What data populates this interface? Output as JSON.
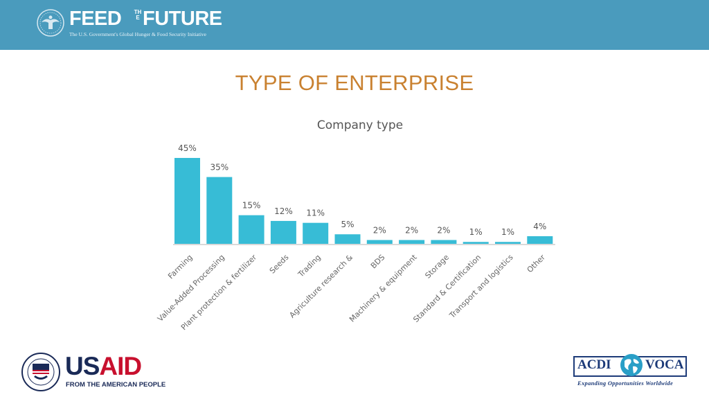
{
  "header": {
    "logo": {
      "feed": "FEED",
      "the": "THE",
      "future": "FUTURE",
      "tagline": "The U.S. Government's Global Hunger & Food Security Initiative"
    }
  },
  "slide_title": "TYPE OF ENTERPRISE",
  "chart_data": {
    "type": "bar",
    "title": "Company type",
    "categories": [
      "Farming",
      "Value-Added Processing",
      "Plant protection & fertilizer",
      "Seeds",
      "Trading",
      "Agriculture research &",
      "BDS",
      "Machinery & equipment",
      "Storage",
      "Standard & Certification",
      "Transport and logistics",
      "Other"
    ],
    "values": [
      45,
      35,
      15,
      12,
      11,
      5,
      2,
      2,
      2,
      1,
      1,
      4
    ],
    "value_labels": [
      "45%",
      "35%",
      "15%",
      "12%",
      "11%",
      "5%",
      "2%",
      "2%",
      "2%",
      "1%",
      "1%",
      "4%"
    ],
    "unit": "%",
    "ylim": [
      0,
      45
    ],
    "grid": false,
    "bar_color": "#37bcd6",
    "baseline_color": "#d9d9d9"
  },
  "footer": {
    "usaid": {
      "name": "USAID",
      "tagline": "FROM THE AMERICAN PEOPLE",
      "us_color": "#1a2a57",
      "aid_color": "#c8102e"
    },
    "acdi": {
      "left": "ACDI",
      "right": "VOCA",
      "tagline": "Expanding Opportunities Worldwide",
      "color": "#1c3a78"
    }
  }
}
